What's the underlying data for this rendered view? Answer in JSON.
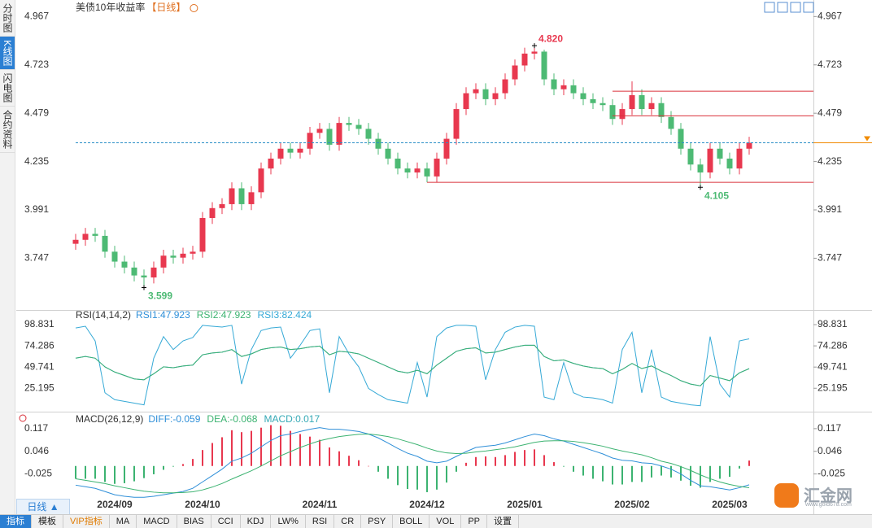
{
  "sidebar_tabs": [
    "分时图",
    "K线图",
    "闪电图",
    "合约资料"
  ],
  "chart_data": [
    {
      "type": "candlestick",
      "title": "美债10年收益率",
      "subtitle": "【日线】",
      "categories": [
        null,
        null,
        null,
        null,
        "2024/09",
        null,
        null,
        null,
        null,
        null,
        null,
        null,
        null,
        "2024/10",
        null,
        null,
        null,
        null,
        null,
        null,
        null,
        null,
        null,
        null,
        null,
        "2024/11",
        null,
        null,
        null,
        null,
        null,
        null,
        null,
        null,
        null,
        null,
        "2024/12",
        null,
        null,
        null,
        null,
        null,
        null,
        null,
        null,
        null,
        "2025/01",
        null,
        null,
        null,
        null,
        null,
        null,
        null,
        null,
        null,
        null,
        "2025/02",
        null,
        null,
        null,
        null,
        null,
        null,
        null,
        null,
        null,
        "2025/03",
        null,
        null
      ],
      "open": [
        3.82,
        3.84,
        3.87,
        3.86,
        3.78,
        3.73,
        3.7,
        3.66,
        3.65,
        3.7,
        3.76,
        3.75,
        3.77,
        3.78,
        3.95,
        4.0,
        4.02,
        4.1,
        4.02,
        4.08,
        4.2,
        4.25,
        4.3,
        4.28,
        4.3,
        4.38,
        4.4,
        4.32,
        4.43,
        4.42,
        4.4,
        4.35,
        4.3,
        4.25,
        4.2,
        4.18,
        4.2,
        4.16,
        4.25,
        4.35,
        4.5,
        4.58,
        4.6,
        4.55,
        4.58,
        4.65,
        4.72,
        4.78,
        4.79,
        4.65,
        4.6,
        4.62,
        4.58,
        4.55,
        4.53,
        4.52,
        4.45,
        4.5,
        4.57,
        4.5,
        4.53,
        4.46,
        4.4,
        4.3,
        4.22,
        4.18,
        4.3,
        4.25,
        4.2,
        4.3
      ],
      "high": [
        3.87,
        3.9,
        3.9,
        3.89,
        3.81,
        3.76,
        3.73,
        3.69,
        3.73,
        3.79,
        3.79,
        3.8,
        3.81,
        3.98,
        4.03,
        4.05,
        4.13,
        4.13,
        4.11,
        4.23,
        4.28,
        4.33,
        4.33,
        4.33,
        4.41,
        4.43,
        4.43,
        4.46,
        4.46,
        4.45,
        4.43,
        4.38,
        4.33,
        4.28,
        4.23,
        4.23,
        4.23,
        4.28,
        4.38,
        4.53,
        4.61,
        4.63,
        4.63,
        4.61,
        4.68,
        4.75,
        4.81,
        4.82,
        4.8,
        4.68,
        4.65,
        4.65,
        4.61,
        4.58,
        4.56,
        4.55,
        4.53,
        4.64,
        4.6,
        4.56,
        4.56,
        4.49,
        4.43,
        4.33,
        4.25,
        4.33,
        4.33,
        4.28,
        4.33,
        4.36
      ],
      "low": [
        3.79,
        3.81,
        3.83,
        3.75,
        3.7,
        3.67,
        3.63,
        3.599,
        3.62,
        3.67,
        3.72,
        3.72,
        3.74,
        3.75,
        3.92,
        3.97,
        3.99,
        3.99,
        3.99,
        4.05,
        4.17,
        4.22,
        4.25,
        4.25,
        4.27,
        4.35,
        4.29,
        4.29,
        4.39,
        4.37,
        4.32,
        4.27,
        4.22,
        4.17,
        4.15,
        4.15,
        4.13,
        4.13,
        4.22,
        4.32,
        4.47,
        4.55,
        4.52,
        4.52,
        4.55,
        4.62,
        4.69,
        4.75,
        4.62,
        4.57,
        4.57,
        4.55,
        4.52,
        4.5,
        4.49,
        4.42,
        4.42,
        4.47,
        4.47,
        4.47,
        4.43,
        4.37,
        4.27,
        4.19,
        4.105,
        4.15,
        4.22,
        4.17,
        4.17,
        4.27
      ],
      "close": [
        3.84,
        3.87,
        3.86,
        3.78,
        3.73,
        3.7,
        3.66,
        3.65,
        3.7,
        3.76,
        3.75,
        3.77,
        3.78,
        3.95,
        4.0,
        4.02,
        4.1,
        4.02,
        4.08,
        4.2,
        4.25,
        4.3,
        4.28,
        4.3,
        4.38,
        4.4,
        4.32,
        4.43,
        4.42,
        4.4,
        4.35,
        4.3,
        4.25,
        4.2,
        4.18,
        4.2,
        4.16,
        4.25,
        4.35,
        4.5,
        4.58,
        4.6,
        4.55,
        4.58,
        4.65,
        4.72,
        4.78,
        4.79,
        4.65,
        4.6,
        4.62,
        4.58,
        4.55,
        4.53,
        4.52,
        4.45,
        4.5,
        4.57,
        4.5,
        4.53,
        4.46,
        4.4,
        4.3,
        4.22,
        4.18,
        4.3,
        4.25,
        4.2,
        4.3,
        4.33
      ],
      "up_color": "#e8384f",
      "down_color": "#4dba74",
      "ylim": [
        3.49,
        5.03
      ],
      "yticks": [
        4.967,
        4.723,
        4.479,
        4.235,
        3.991,
        3.747
      ],
      "extremes": [
        {
          "label": "4.820",
          "value": 4.82,
          "at": "high"
        },
        {
          "label": "3.599",
          "value": 3.599,
          "at": "low"
        },
        {
          "label": "4.105",
          "value": 4.105,
          "at": "low"
        }
      ],
      "levels": [
        {
          "value": 4.59,
          "from": 55
        },
        {
          "value": 4.466,
          "from": 55
        },
        {
          "value": 4.13,
          "from": 36
        }
      ],
      "level_color": "#d9303a",
      "last_line_color": "#2a8fc7"
    },
    {
      "type": "line",
      "title": "RSI(14,14,2)",
      "series": [
        {
          "name": "RSI1:47.923",
          "color": "#2f8fd8",
          "values": [
            60,
            62,
            60,
            50,
            44,
            40,
            36,
            35,
            42,
            50,
            49,
            51,
            52,
            64,
            66,
            67,
            70,
            62,
            65,
            70,
            72,
            73,
            70,
            71,
            73,
            74,
            64,
            68,
            67,
            65,
            60,
            55,
            50,
            45,
            43,
            46,
            42,
            52,
            60,
            68,
            71,
            72,
            66,
            67,
            70,
            73,
            75,
            75,
            62,
            57,
            58,
            54,
            51,
            49,
            48,
            42,
            47,
            54,
            48,
            51,
            45,
            40,
            34,
            30,
            28,
            40,
            37,
            34,
            43,
            47.923
          ]
        },
        {
          "name": "RSI2:47.923",
          "color": "#3cb371",
          "values": [
            60,
            62,
            60,
            50,
            44,
            40,
            36,
            35,
            42,
            50,
            49,
            51,
            52,
            64,
            66,
            67,
            70,
            62,
            65,
            70,
            72,
            73,
            70,
            71,
            73,
            74,
            64,
            68,
            67,
            65,
            60,
            55,
            50,
            45,
            43,
            46,
            42,
            52,
            60,
            68,
            71,
            72,
            66,
            67,
            70,
            73,
            75,
            75,
            62,
            57,
            58,
            54,
            51,
            49,
            48,
            42,
            47,
            54,
            48,
            51,
            45,
            40,
            34,
            30,
            28,
            40,
            37,
            34,
            43,
            47.923
          ]
        },
        {
          "name": "RSI3:82.424",
          "color": "#35a9d6",
          "values": [
            95,
            97,
            80,
            20,
            12,
            10,
            8,
            6,
            60,
            85,
            70,
            80,
            84,
            98,
            97,
            96,
            98,
            30,
            70,
            92,
            95,
            96,
            60,
            75,
            92,
            94,
            20,
            85,
            65,
            50,
            25,
            18,
            12,
            10,
            8,
            55,
            15,
            85,
            95,
            98,
            98,
            97,
            35,
            70,
            90,
            96,
            98,
            97,
            15,
            12,
            55,
            20,
            15,
            14,
            12,
            8,
            70,
            90,
            20,
            70,
            15,
            10,
            8,
            6,
            5,
            85,
            30,
            15,
            80,
            82.424
          ]
        }
      ],
      "ylim": [
        0,
        113
      ],
      "yticks": [
        98.831,
        74.286,
        49.741,
        25.195
      ]
    },
    {
      "type": "macd",
      "title": "MACD(26,12,9)",
      "series": [
        {
          "name": "DIFF:-0.059",
          "color": "#2f8fd8",
          "style": "line",
          "values": [
            -0.06,
            -0.065,
            -0.07,
            -0.08,
            -0.09,
            -0.095,
            -0.098,
            -0.098,
            -0.095,
            -0.09,
            -0.085,
            -0.08,
            -0.07,
            -0.05,
            -0.03,
            -0.01,
            0.015,
            0.025,
            0.04,
            0.06,
            0.08,
            0.095,
            0.1,
            0.108,
            0.115,
            0.12,
            0.115,
            0.115,
            0.112,
            0.108,
            0.1,
            0.088,
            0.072,
            0.055,
            0.04,
            0.03,
            0.015,
            0.01,
            0.015,
            0.03,
            0.045,
            0.058,
            0.062,
            0.065,
            0.072,
            0.082,
            0.092,
            0.1,
            0.095,
            0.085,
            0.078,
            0.068,
            0.058,
            0.048,
            0.038,
            0.025,
            0.018,
            0.016,
            0.01,
            0.008,
            0.0,
            -0.01,
            -0.025,
            -0.045,
            -0.062,
            -0.065,
            -0.07,
            -0.075,
            -0.068,
            -0.059
          ]
        },
        {
          "name": "DEA:-0.068",
          "color": "#3cb371",
          "style": "line",
          "values": [
            -0.04,
            -0.045,
            -0.05,
            -0.055,
            -0.062,
            -0.068,
            -0.074,
            -0.079,
            -0.082,
            -0.084,
            -0.084,
            -0.083,
            -0.081,
            -0.075,
            -0.066,
            -0.055,
            -0.041,
            -0.028,
            -0.015,
            0.0,
            0.016,
            0.032,
            0.045,
            0.058,
            0.069,
            0.079,
            0.086,
            0.092,
            0.096,
            0.099,
            0.1,
            0.097,
            0.092,
            0.085,
            0.076,
            0.067,
            0.056,
            0.047,
            0.041,
            0.039,
            0.04,
            0.044,
            0.047,
            0.051,
            0.055,
            0.06,
            0.067,
            0.074,
            0.078,
            0.079,
            0.079,
            0.077,
            0.073,
            0.068,
            0.062,
            0.054,
            0.047,
            0.041,
            0.035,
            0.026,
            0.015,
            0.008,
            -0.002,
            -0.014,
            -0.028,
            -0.04,
            -0.05,
            -0.058,
            -0.064,
            -0.068
          ]
        },
        {
          "name": "MACD:0.017",
          "color": "#35a9b6",
          "style": "bar",
          "up_color": "#e8384f",
          "down_color": "#3cb371",
          "values": [
            -0.04,
            -0.04,
            -0.04,
            -0.05,
            -0.056,
            -0.054,
            -0.048,
            -0.038,
            -0.026,
            -0.012,
            -0.002,
            0.006,
            0.022,
            0.05,
            0.072,
            0.09,
            0.112,
            0.106,
            0.11,
            0.12,
            0.128,
            0.126,
            0.11,
            0.1,
            0.092,
            0.082,
            0.058,
            0.046,
            0.032,
            0.018,
            0.0,
            -0.018,
            -0.04,
            -0.06,
            -0.072,
            -0.074,
            -0.082,
            -0.074,
            -0.052,
            -0.018,
            0.01,
            0.028,
            0.03,
            0.028,
            0.034,
            0.044,
            0.05,
            0.052,
            0.034,
            0.012,
            -0.002,
            -0.018,
            -0.03,
            -0.04,
            -0.048,
            -0.058,
            -0.058,
            -0.05,
            -0.05,
            -0.036,
            -0.03,
            -0.036,
            -0.046,
            -0.062,
            -0.068,
            -0.05,
            -0.04,
            -0.034,
            -0.008,
            0.017
          ]
        }
      ],
      "ylim": [
        -0.1,
        0.16
      ],
      "yticks": [
        0.117,
        0.046,
        -0.025
      ]
    }
  ],
  "toolbar": {
    "period": "日线 ▲",
    "tabs": [
      "指标",
      "模板",
      "VIP指标",
      "MA",
      "MACD",
      "BIAS",
      "CCI",
      "KDJ",
      "LW%",
      "RSI",
      "CR",
      "PSY",
      "BOLL",
      "VOL",
      "PP",
      "设置"
    ]
  },
  "logo": {
    "name": "汇金网",
    "url": "www.gold678.com"
  }
}
